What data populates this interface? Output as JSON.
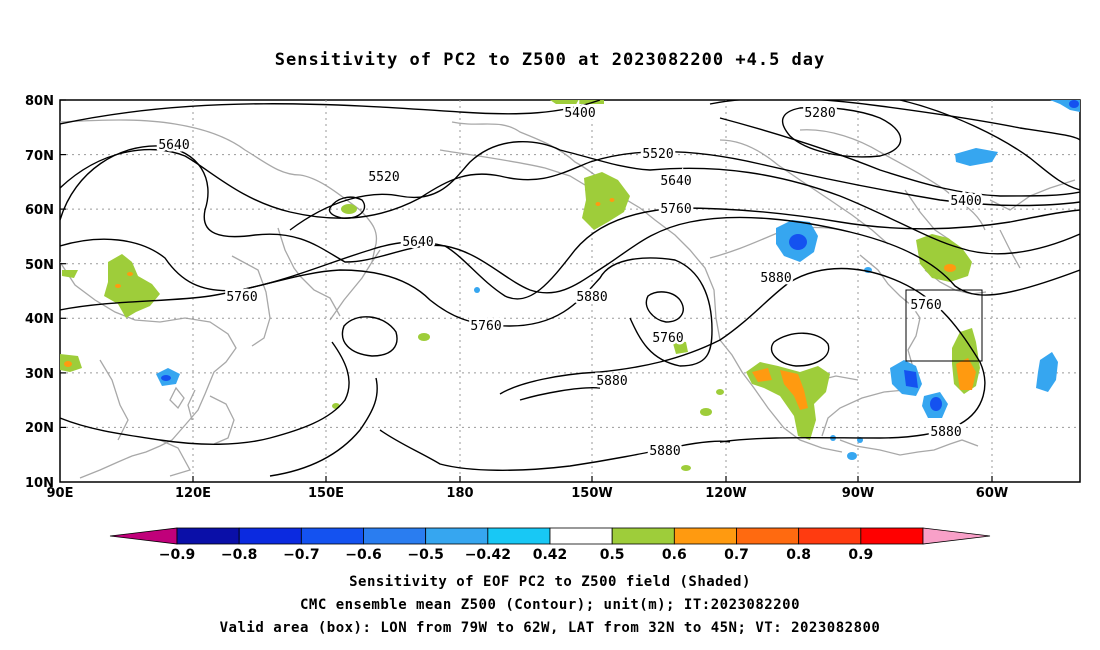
{
  "title": "Sensitivity of PC2 to Z500 at 2023082200 +4.5 day",
  "lat_labels": [
    "80N",
    "70N",
    "60N",
    "50N",
    "40N",
    "30N",
    "20N",
    "10N"
  ],
  "lon_labels": [
    "90E",
    "120E",
    "150E",
    "180",
    "150W",
    "120W",
    "90W",
    "60W"
  ],
  "contour_labels": [
    "5400",
    "5280",
    "5640",
    "5520",
    "5520",
    "5640",
    "5760",
    "5640",
    "5760",
    "5400",
    "5760",
    "5880",
    "5760",
    "5880",
    "5760",
    "5880",
    "5880",
    "5880"
  ],
  "colorbar": {
    "labels": [
      "-0.9",
      "-0.8",
      "-0.7",
      "-0.6",
      "-0.5",
      "-0.42",
      "0.42",
      "0.5",
      "0.6",
      "0.7",
      "0.8",
      "0.9"
    ],
    "colors": [
      "#c0007a",
      "#0a0fa8",
      "#0b2ae0",
      "#1452f0",
      "#2a7df0",
      "#36a6f0",
      "#18c8f5",
      "#ffffff",
      "#9ecd3a",
      "#ff9a10",
      "#ff6a10",
      "#ff3b10",
      "#ff0000",
      "#f8a0c8"
    ]
  },
  "captions": [
    "Sensitivity of EOF PC2 to Z500 field (Shaded)",
    "CMC ensemble mean Z500 (Contour); unit(m); IT:2023082200",
    "Valid area (box): LON from 79W to 62W, LAT from 32N to 45N; VT: 2023082800"
  ]
}
